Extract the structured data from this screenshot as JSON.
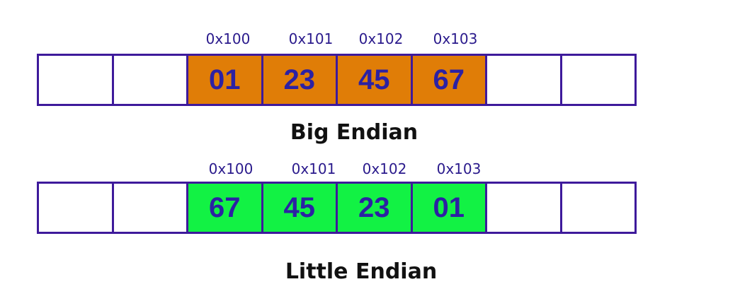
{
  "big_endian": {
    "addresses": [
      "0x100",
      "0x101",
      "0x102",
      "0x103"
    ],
    "bytes": [
      "",
      "",
      "01",
      "23",
      "45",
      "67",
      "",
      ""
    ],
    "caption": "Big Endian",
    "fill_color": "#e07d07"
  },
  "little_endian": {
    "addresses": [
      "0x100",
      "0x101",
      "0x102",
      "0x103"
    ],
    "bytes": [
      "",
      "",
      "67",
      "45",
      "23",
      "01",
      "",
      ""
    ],
    "caption": "Little Endian",
    "fill_color": "#12f244"
  },
  "colors": {
    "border": "#3e1a9b",
    "byte_text": "#2c21a3",
    "address_text": "#2a1a8c"
  }
}
